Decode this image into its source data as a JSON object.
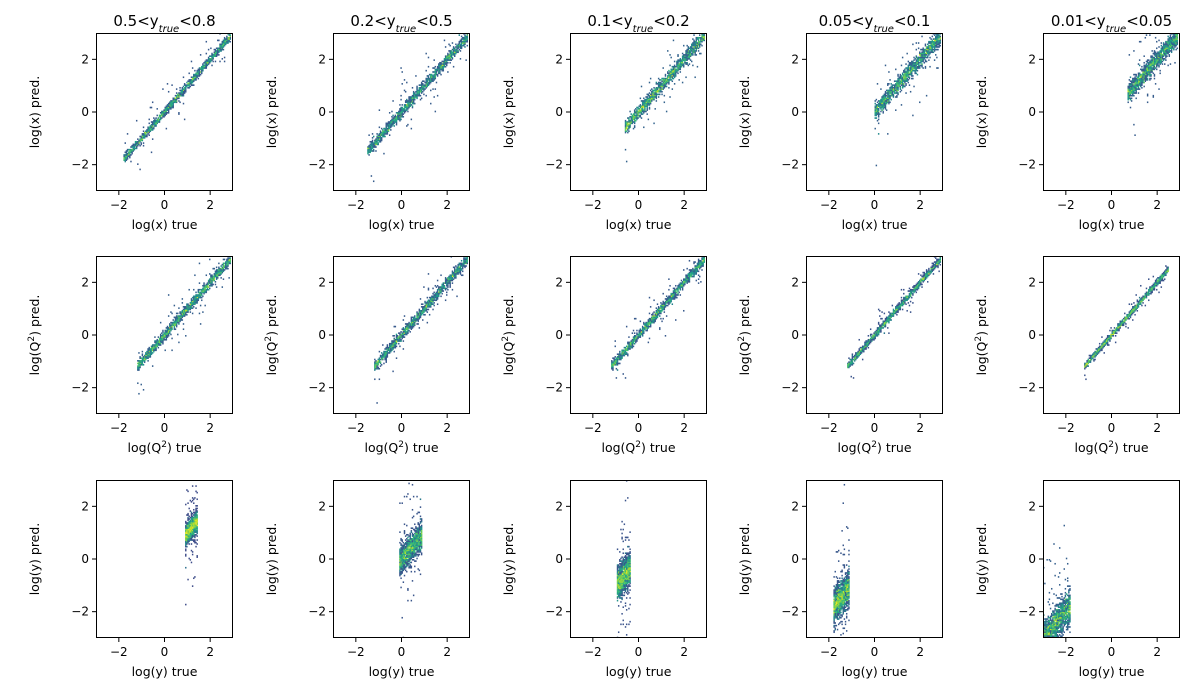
{
  "chart_data": {
    "type": "heatmap",
    "description_kind": "2D histograms of predicted vs true kinematics, binned by y_true",
    "colormap": "viridis",
    "axis_range": [
      -3,
      3
    ],
    "ticks": [
      -2,
      0,
      2
    ],
    "tick_labels": [
      "−2",
      "0",
      "2"
    ],
    "columns": [
      {
        "title_prefix": "0.5<y",
        "title_sub": "true",
        "title_suffix": "<0.8"
      },
      {
        "title_prefix": "0.2<y",
        "title_sub": "true",
        "title_suffix": "<0.5"
      },
      {
        "title_prefix": "0.1<y",
        "title_sub": "true",
        "title_suffix": "<0.2"
      },
      {
        "title_prefix": "0.05<y",
        "title_sub": "true",
        "title_suffix": "<0.1"
      },
      {
        "title_prefix": "0.01<y",
        "title_sub": "true",
        "title_suffix": "<0.05"
      }
    ],
    "rows": [
      {
        "variable": "x",
        "xlabel": {
          "pre": "log(x) true",
          "sup": "",
          "post": ""
        },
        "ylabel": {
          "pre": "log(x) pred.",
          "sup": "",
          "post": ""
        },
        "panels": [
          {
            "x_range": [
              -1.8,
              2.9
            ],
            "slope": 1.0,
            "intercept": 0.0,
            "width": 0.07,
            "spread": 0.18,
            "curve": 0.0
          },
          {
            "x_range": [
              -1.5,
              2.9
            ],
            "slope": 1.0,
            "intercept": 0.0,
            "width": 0.1,
            "spread": 0.25,
            "curve": 0.0
          },
          {
            "x_range": [
              -0.6,
              2.9
            ],
            "slope": 1.0,
            "intercept": 0.0,
            "width": 0.12,
            "spread": 0.25,
            "curve": 0.0
          },
          {
            "x_range": [
              0.0,
              2.9
            ],
            "slope": 1.0,
            "intercept": 0.0,
            "width": 0.14,
            "spread": 0.28,
            "curve": 0.0
          },
          {
            "x_range": [
              0.7,
              2.9
            ],
            "slope": 1.0,
            "intercept": 0.0,
            "width": 0.16,
            "spread": 0.32,
            "curve": 0.0
          }
        ]
      },
      {
        "variable": "Q2",
        "xlabel": {
          "pre": "log(Q",
          "sup": "2",
          "post": ") true"
        },
        "ylabel": {
          "pre": "log(Q",
          "sup": "2",
          "post": ") pred."
        },
        "panels": [
          {
            "x_range": [
              -1.2,
              2.9
            ],
            "slope": 1.0,
            "intercept": 0.0,
            "width": 0.09,
            "spread": 0.2,
            "curve": 0.0
          },
          {
            "x_range": [
              -1.2,
              2.9
            ],
            "slope": 1.0,
            "intercept": 0.0,
            "width": 0.09,
            "spread": 0.2,
            "curve": 0.0
          },
          {
            "x_range": [
              -1.2,
              2.9
            ],
            "slope": 1.0,
            "intercept": 0.0,
            "width": 0.08,
            "spread": 0.18,
            "curve": 0.0
          },
          {
            "x_range": [
              -1.2,
              2.9
            ],
            "slope": 1.0,
            "intercept": 0.0,
            "width": 0.06,
            "spread": 0.12,
            "curve": 0.0
          },
          {
            "x_range": [
              -1.2,
              2.5
            ],
            "slope": 1.0,
            "intercept": 0.0,
            "width": 0.05,
            "spread": 0.1,
            "curve": 0.0
          }
        ]
      },
      {
        "variable": "y",
        "xlabel": {
          "pre": "log(y) true",
          "sup": "",
          "post": ""
        },
        "ylabel": {
          "pre": "log(y) pred.",
          "sup": "",
          "post": ""
        },
        "panels": [
          {
            "x_range": [
              0.9,
              1.45
            ],
            "slope": 1.0,
            "intercept": 0.0,
            "width": 0.18,
            "spread": 0.35,
            "curve": 0.0
          },
          {
            "x_range": [
              -0.1,
              0.9
            ],
            "slope": 1.0,
            "intercept": 0.0,
            "width": 0.25,
            "spread": 0.5,
            "curve": 0.0
          },
          {
            "x_range": [
              -0.95,
              -0.35
            ],
            "slope": 1.0,
            "intercept": 0.0,
            "width": 0.3,
            "spread": 0.6,
            "curve": 0.0
          },
          {
            "x_range": [
              -1.8,
              -1.1
            ],
            "slope": 1.0,
            "intercept": 0.0,
            "width": 0.3,
            "spread": 0.6,
            "curve": 0.0
          },
          {
            "x_range": [
              -3.0,
              -1.8
            ],
            "slope": 1.0,
            "intercept": 0.0,
            "width": 0.3,
            "spread": 0.6,
            "curve": 0.0
          }
        ]
      }
    ]
  }
}
